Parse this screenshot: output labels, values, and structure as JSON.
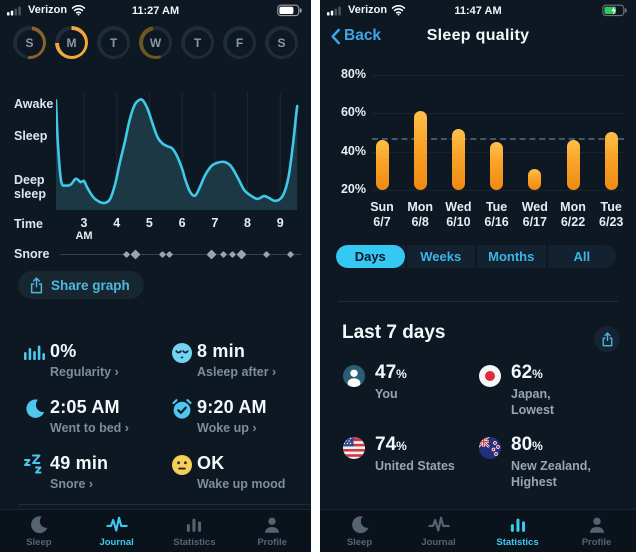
{
  "colors": {
    "bg": "#0d1822",
    "accent": "#3ec9f0",
    "accent_blue": "#3fa5e8",
    "text": "#f4f8fb",
    "muted": "#7d8d9b",
    "orange": "#f8a326",
    "line_cyan": "#3fc9e9",
    "area_fill": "#1c3844",
    "ring_dim": "#1e2b38",
    "ring_bright": "#f2a83b",
    "ring_faded": "#8a6326",
    "ring_faded2": "#6e5524",
    "yellow_mood": "#f6cf56",
    "battery_green": "#35c759"
  },
  "left": {
    "status": {
      "carrier": "Verizon",
      "time": "11:27 AM"
    },
    "week": {
      "days": [
        {
          "letter": "S",
          "arc_start": 10,
          "arc_sweep": 175,
          "arc_color": "#8a6326"
        },
        {
          "letter": "M",
          "arc_start": 0,
          "arc_sweep": 268,
          "arc_color": "#f2a83b"
        },
        {
          "letter": "T",
          "arc_start": 0,
          "arc_sweep": 0,
          "arc_color": "none"
        },
        {
          "letter": "W",
          "arc_start": 160,
          "arc_sweep": 190,
          "arc_color": "#6e5524"
        },
        {
          "letter": "T",
          "arc_start": 0,
          "arc_sweep": 0,
          "arc_color": "none"
        },
        {
          "letter": "F",
          "arc_start": 0,
          "arc_sweep": 0,
          "arc_color": "none"
        },
        {
          "letter": "S",
          "arc_start": 0,
          "arc_sweep": 0,
          "arc_color": "none"
        }
      ]
    },
    "share_button": "Share graph",
    "stats": [
      {
        "value": "0%",
        "label": "Regularity ›"
      },
      {
        "value": "8 min",
        "label": "Asleep after ›"
      },
      {
        "value": "2:05 AM",
        "label": "Went to bed ›"
      },
      {
        "value": "9:20 AM",
        "label": "Woke up ›"
      },
      {
        "value": "49 min",
        "label": "Snore ›"
      },
      {
        "value": "OK",
        "label": "Wake up mood"
      }
    ],
    "tabs": {
      "active_index": 1,
      "items": [
        {
          "label": "Sleep"
        },
        {
          "label": "Journal"
        },
        {
          "label": "Statistics"
        },
        {
          "label": "Profile"
        }
      ]
    }
  },
  "right": {
    "status": {
      "carrier": "Verizon",
      "time": "11:47 AM"
    },
    "back_label": "Back",
    "title": "Sleep quality",
    "segments": {
      "selected_index": 0,
      "items": [
        "Days",
        "Weeks",
        "Months",
        "All"
      ]
    },
    "section_title": "Last 7 days",
    "comparisons": [
      {
        "value": "47",
        "unit": "%",
        "label": "You",
        "label2": "",
        "icon": "person"
      },
      {
        "value": "62",
        "unit": "%",
        "label": "Japan,",
        "label2": "Lowest",
        "icon": "japan-flag"
      },
      {
        "value": "74",
        "unit": "%",
        "label": "United States",
        "label2": "",
        "icon": "us-flag"
      },
      {
        "value": "80",
        "unit": "%",
        "label": "New Zealand,",
        "label2": "Highest",
        "icon": "nz-flag"
      }
    ],
    "tabs": {
      "active_index": 2,
      "items": [
        {
          "label": "Sleep"
        },
        {
          "label": "Journal"
        },
        {
          "label": "Statistics"
        },
        {
          "label": "Profile"
        }
      ]
    }
  },
  "chart_data": [
    {
      "id": "sleep-stages-hypnogram",
      "type": "area",
      "ylabels": [
        "Awake",
        "Sleep",
        "Deep sleep"
      ],
      "xlabel": "Time",
      "x_ticks": [
        {
          "label": "3",
          "sub": "AM",
          "hour": 3
        },
        {
          "label": "4",
          "hour": 4
        },
        {
          "label": "5",
          "hour": 5
        },
        {
          "label": "6",
          "hour": 6
        },
        {
          "label": "7",
          "hour": 7
        },
        {
          "label": "8",
          "hour": 8
        },
        {
          "label": "9",
          "hour": 9
        }
      ],
      "points": [
        [
          2.14,
          0.97
        ],
        [
          2.2,
          0.6
        ],
        [
          2.3,
          0.25
        ],
        [
          2.45,
          0.21
        ],
        [
          2.6,
          0.22
        ],
        [
          2.75,
          0.27
        ],
        [
          2.9,
          0.24
        ],
        [
          3.0,
          0.25
        ],
        [
          3.1,
          0.19
        ],
        [
          3.3,
          0.1
        ],
        [
          3.5,
          0.06
        ],
        [
          3.65,
          0.055
        ],
        [
          3.8,
          0.09
        ],
        [
          3.95,
          0.22
        ],
        [
          4.1,
          0.42
        ],
        [
          4.25,
          0.6
        ],
        [
          4.4,
          0.8
        ],
        [
          4.55,
          0.93
        ],
        [
          4.7,
          0.975
        ],
        [
          4.8,
          0.97
        ],
        [
          4.95,
          0.89
        ],
        [
          5.1,
          0.76
        ],
        [
          5.25,
          0.64
        ],
        [
          5.4,
          0.585
        ],
        [
          5.55,
          0.56
        ],
        [
          5.7,
          0.54
        ],
        [
          5.85,
          0.47
        ],
        [
          6.0,
          0.36
        ],
        [
          6.1,
          0.26
        ],
        [
          6.25,
          0.15
        ],
        [
          6.4,
          0.12
        ],
        [
          6.55,
          0.2
        ],
        [
          6.7,
          0.3
        ],
        [
          6.9,
          0.385
        ],
        [
          7.1,
          0.415
        ],
        [
          7.3,
          0.42
        ],
        [
          7.5,
          0.38
        ],
        [
          7.7,
          0.28
        ],
        [
          7.9,
          0.17
        ],
        [
          8.1,
          0.12
        ],
        [
          8.3,
          0.09
        ],
        [
          8.5,
          0.115
        ],
        [
          8.65,
          0.1
        ],
        [
          8.8,
          0.075
        ],
        [
          8.95,
          0.08
        ],
        [
          9.1,
          0.13
        ],
        [
          9.25,
          0.28
        ],
        [
          9.38,
          0.55
        ],
        [
          9.48,
          0.82
        ],
        [
          9.52,
          0.92
        ]
      ],
      "snore": {
        "label": "Snore",
        "times": [
          4.31,
          4.56,
          5.39,
          5.6,
          6.91,
          7.28,
          7.53,
          7.83,
          8.57,
          9.33
        ]
      }
    },
    {
      "id": "sleep-quality-by-day",
      "type": "bar",
      "yticks": [
        {
          "label": "80%",
          "value": 80
        },
        {
          "label": "60%",
          "value": 60
        },
        {
          "label": "40%",
          "value": 40
        },
        {
          "label": "20%",
          "value": 20
        }
      ],
      "ylim": [
        20,
        85
      ],
      "baseline": 20,
      "average_line": 47,
      "categories": [
        {
          "day": "Sun",
          "date": "6/7"
        },
        {
          "day": "Mon",
          "date": "6/8"
        },
        {
          "day": "Wed",
          "date": "6/10"
        },
        {
          "day": "Tue",
          "date": "6/16"
        },
        {
          "day": "Wed",
          "date": "6/17"
        },
        {
          "day": "Mon",
          "date": "6/22"
        },
        {
          "day": "Tue",
          "date": "6/23"
        }
      ],
      "values": [
        46,
        61,
        52,
        45,
        31,
        46,
        50
      ]
    }
  ]
}
